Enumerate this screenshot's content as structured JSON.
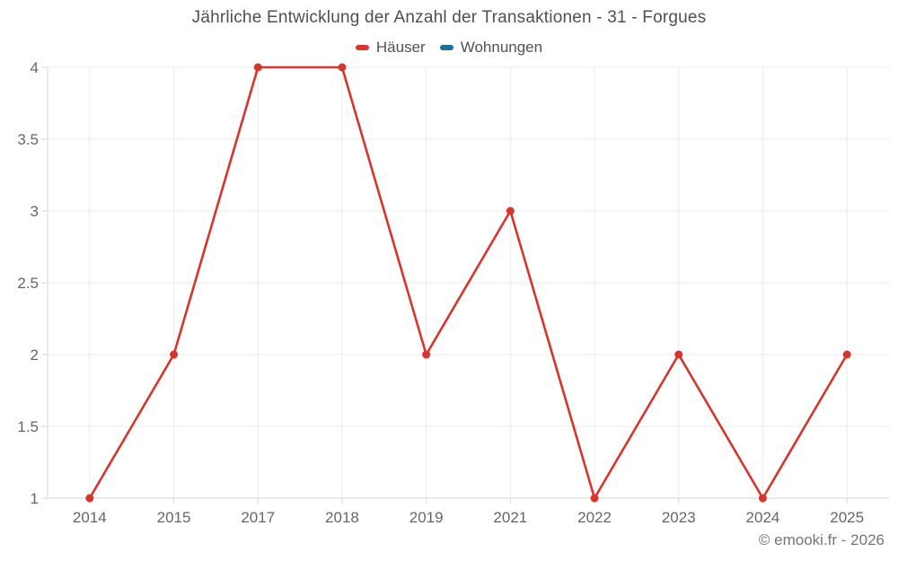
{
  "header": {
    "title": "Jährliche Entwicklung der Anzahl der Transaktionen - 31 - Forgues"
  },
  "watermark": "© emooki.fr - 2026",
  "colors": {
    "background": "#ffffff",
    "grid": "#ebebeb",
    "axis": "#d6d6d6",
    "axis_text": "#666666",
    "title_text": "#4f4f4f",
    "legend_text": "#525252",
    "watermark_text": "#757575",
    "hauser_red": "#d7342c",
    "wohnungen_blue": "#1a6f9e"
  },
  "chart_data": {
    "type": "line",
    "title": "Jährliche Entwicklung der Anzahl der Transaktionen - 31 - Forgues",
    "categories": [
      "2014",
      "2015",
      "2017",
      "2018",
      "2019",
      "2021",
      "2022",
      "2023",
      "2024",
      "2025"
    ],
    "series": [
      {
        "name": "Häuser",
        "color": "#d7342c",
        "values": [
          1,
          2,
          4,
          4,
          2,
          3,
          1,
          2,
          1,
          2
        ]
      },
      {
        "name": "Wohnungen",
        "color": "#1a6f9e",
        "values": []
      }
    ],
    "xlabel": "",
    "ylabel": "",
    "ylim": [
      1,
      4
    ],
    "yticks": [
      1,
      1.5,
      2,
      2.5,
      3,
      3.5,
      4
    ],
    "grid": true,
    "legend_position": "top",
    "marker": "circle",
    "line_width": 2.6,
    "marker_radius": 4.5
  }
}
